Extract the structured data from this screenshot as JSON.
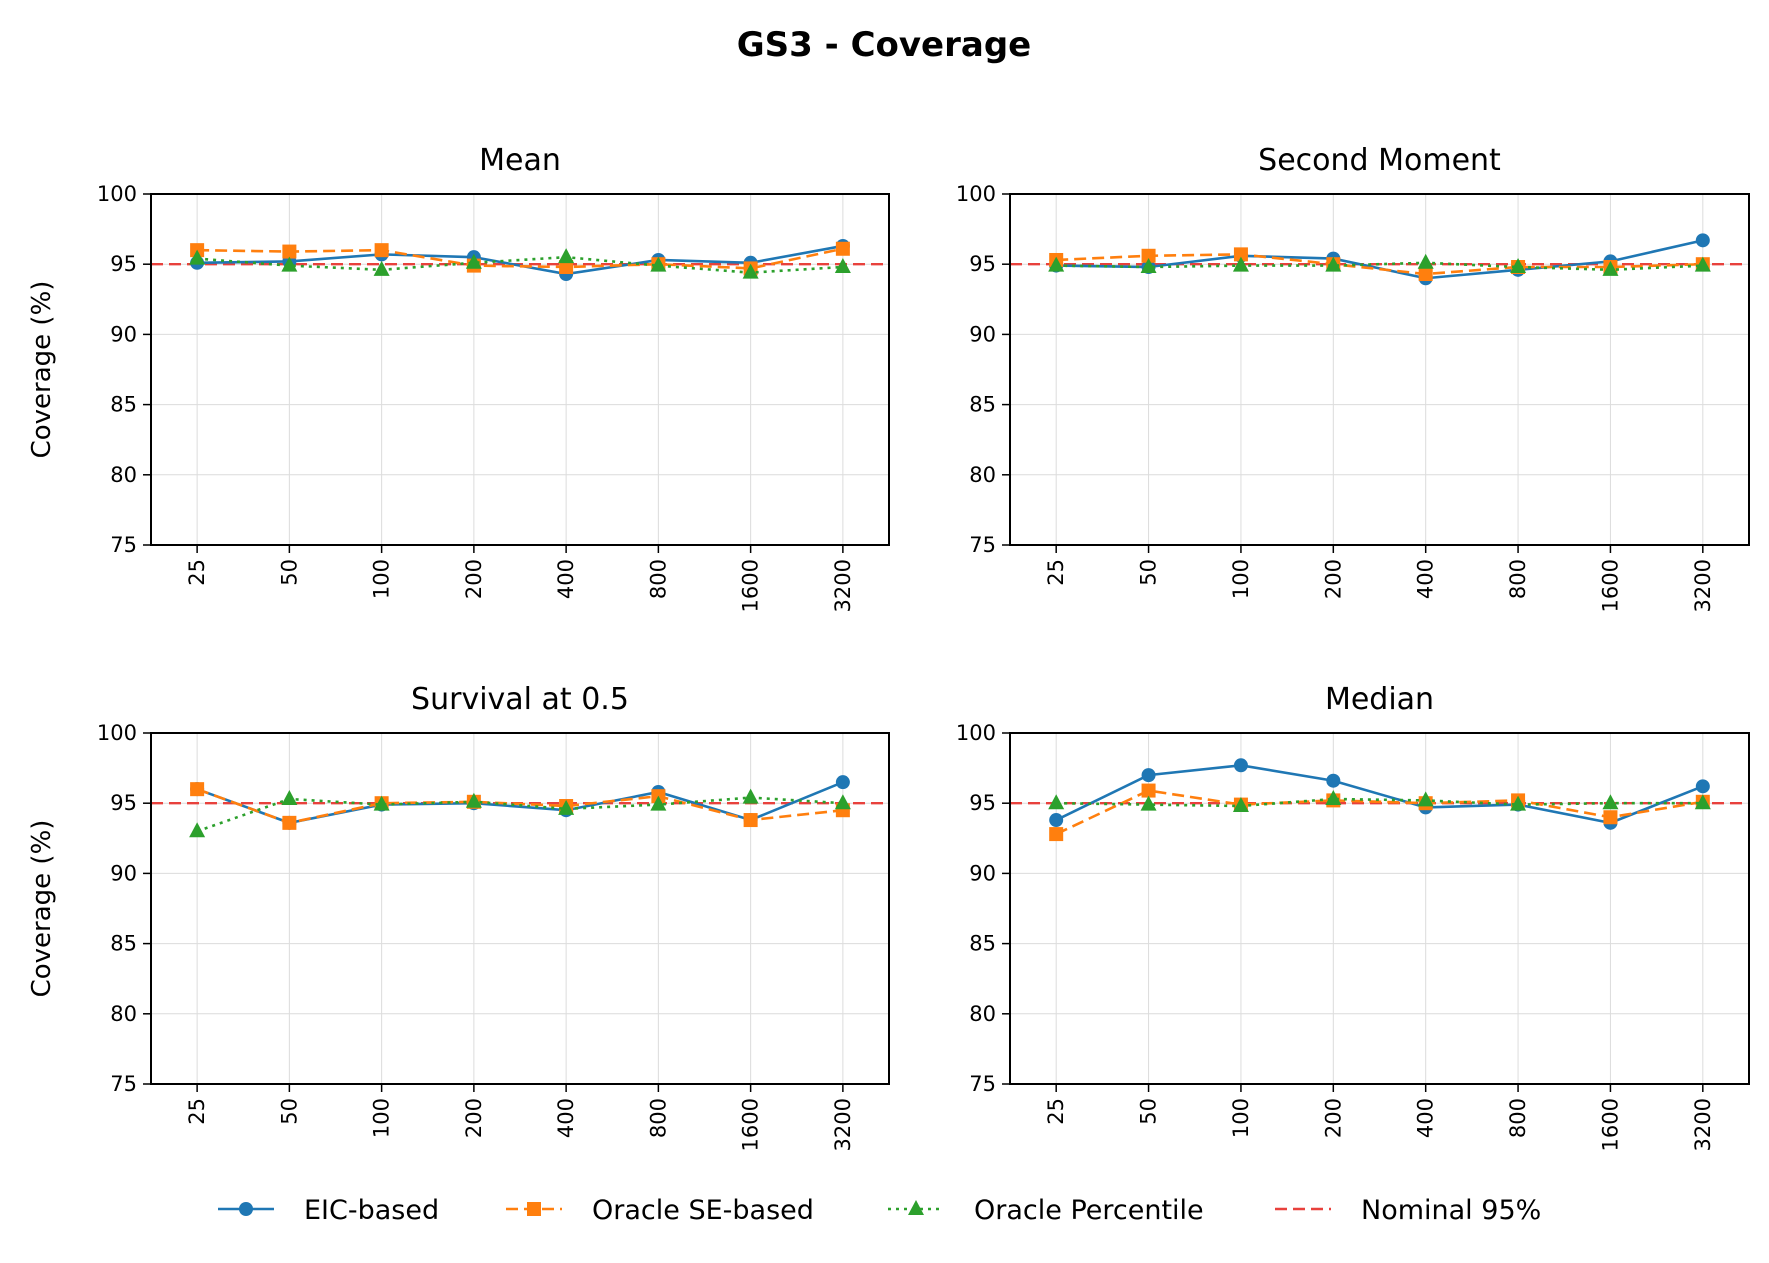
{
  "title": "GS3 - Coverage",
  "chart_data": {
    "type": "line",
    "ylabel": "Coverage (%)",
    "ylim": [
      75,
      100
    ],
    "yticks": [
      75,
      80,
      85,
      90,
      95,
      100
    ],
    "categories": [
      "25",
      "50",
      "100",
      "200",
      "400",
      "800",
      "1600",
      "3200"
    ],
    "grid": true,
    "legend_position": "bottom-center",
    "nominal_value": 95,
    "series_styles": [
      {
        "name": "EIC-based",
        "color": "#1f77b4",
        "dash": "solid",
        "marker": "circle"
      },
      {
        "name": "Oracle SE-based",
        "color": "#ff7f0e",
        "dash": "dashed",
        "marker": "square"
      },
      {
        "name": "Oracle Percentile",
        "color": "#2ca02c",
        "dash": "dotted",
        "marker": "triangle"
      },
      {
        "name": "Nominal 95%",
        "color": "#e8413c",
        "dash": "dashed",
        "marker": "none"
      }
    ],
    "panels": [
      {
        "title": "Mean",
        "series": [
          {
            "name": "EIC-based",
            "values": [
              95.1,
              95.2,
              95.7,
              95.5,
              94.3,
              95.3,
              95.1,
              96.3
            ]
          },
          {
            "name": "Oracle SE-based",
            "values": [
              96.0,
              95.9,
              96.0,
              94.9,
              94.8,
              95.0,
              94.7,
              96.1
            ]
          },
          {
            "name": "Oracle Percentile",
            "values": [
              95.4,
              94.9,
              94.6,
              95.1,
              95.5,
              94.9,
              94.4,
              94.8
            ]
          }
        ]
      },
      {
        "title": "Second Moment",
        "series": [
          {
            "name": "EIC-based",
            "values": [
              94.9,
              94.8,
              95.6,
              95.4,
              94.0,
              94.6,
              95.2,
              96.7
            ]
          },
          {
            "name": "Oracle SE-based",
            "values": [
              95.3,
              95.6,
              95.7,
              95.0,
              94.3,
              94.8,
              94.8,
              95.0
            ]
          },
          {
            "name": "Oracle Percentile",
            "values": [
              94.9,
              94.8,
              94.9,
              94.9,
              95.1,
              94.8,
              94.6,
              94.9
            ]
          }
        ]
      },
      {
        "title": "Survival at 0.5",
        "series": [
          {
            "name": "EIC-based",
            "values": [
              96.0,
              93.6,
              94.9,
              95.0,
              94.5,
              95.8,
              93.8,
              96.5
            ]
          },
          {
            "name": "Oracle SE-based",
            "values": [
              96.0,
              93.6,
              95.0,
              95.1,
              94.8,
              95.5,
              93.8,
              94.5
            ]
          },
          {
            "name": "Oracle Percentile",
            "values": [
              93.0,
              95.3,
              94.9,
              95.1,
              94.6,
              94.9,
              95.4,
              95.0
            ]
          }
        ]
      },
      {
        "title": "Median",
        "series": [
          {
            "name": "EIC-based",
            "values": [
              93.8,
              97.0,
              97.7,
              96.6,
              94.7,
              94.9,
              93.6,
              96.2
            ]
          },
          {
            "name": "Oracle SE-based",
            "values": [
              92.8,
              95.9,
              94.9,
              95.2,
              95.0,
              95.2,
              94.0,
              95.1
            ]
          },
          {
            "name": "Oracle Percentile",
            "values": [
              95.0,
              94.9,
              94.8,
              95.3,
              95.2,
              94.9,
              95.0,
              95.0
            ]
          }
        ]
      }
    ]
  }
}
